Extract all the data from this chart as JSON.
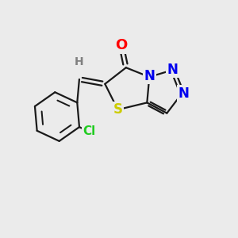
{
  "background_color": "#ebebeb",
  "bond_color": "#1a1a1a",
  "atom_colors": {
    "O": "#ff0000",
    "N": "#0000ee",
    "S": "#cccc00",
    "Cl": "#22cc22",
    "H": "#808080",
    "C": "#1a1a1a"
  },
  "figsize": [
    3.0,
    3.0
  ],
  "dpi": 100
}
